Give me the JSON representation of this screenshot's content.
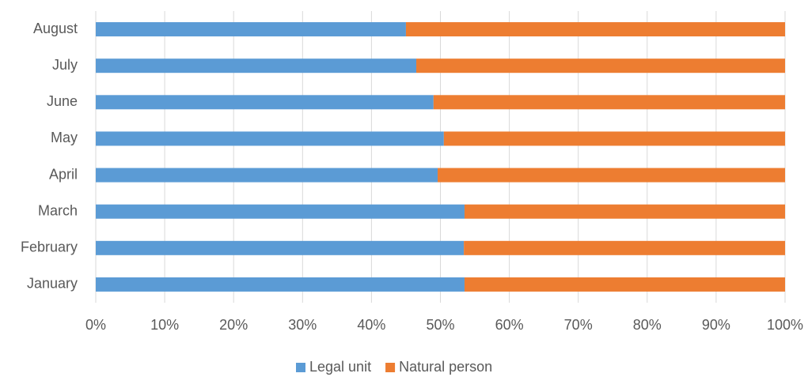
{
  "chart_data": {
    "type": "stacked_bar_horizontal",
    "categories": [
      "January",
      "February",
      "March",
      "April",
      "May",
      "June",
      "July",
      "August"
    ],
    "series": [
      {
        "name": "Legal unit",
        "color": "#5b9bd5",
        "values": [
          53.5,
          53.4,
          53.5,
          49.6,
          50.5,
          49,
          46.5,
          45
        ]
      },
      {
        "name": "Natural person",
        "color": "#ed7d31",
        "values": [
          46.5,
          46.6,
          46.5,
          50.4,
          49.5,
          51,
          53.5,
          55
        ]
      }
    ],
    "xlim": [
      0,
      100
    ],
    "xticks": [
      {
        "value": 0,
        "label": "0%"
      },
      {
        "value": 10,
        "label": "10%"
      },
      {
        "value": 20,
        "label": "20%"
      },
      {
        "value": 30,
        "label": "30%"
      },
      {
        "value": 40,
        "label": "40%"
      },
      {
        "value": 50,
        "label": "50%"
      },
      {
        "value": 60,
        "label": "60%"
      },
      {
        "value": 70,
        "label": "70%"
      },
      {
        "value": 80,
        "label": "80%"
      },
      {
        "value": 90,
        "label": "90%"
      },
      {
        "value": 100,
        "label": "100%"
      }
    ],
    "grid": true,
    "legend": "bottom"
  }
}
